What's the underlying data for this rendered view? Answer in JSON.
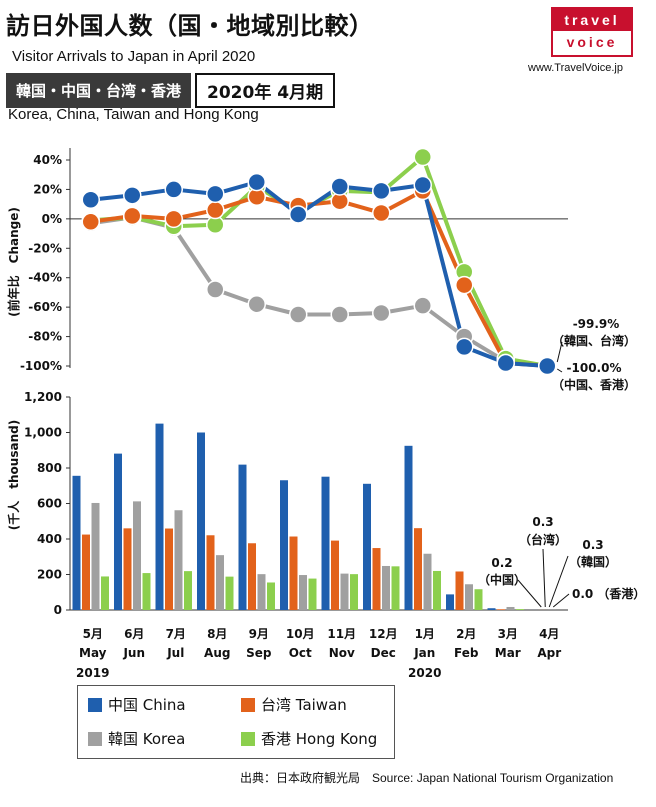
{
  "header": {
    "title": "訪日外国人数（国・地域別比較）",
    "subtitle_en": "Visitor Arrivals to Japan in April 2020",
    "badge_regions": "韓国・中国・台湾・香港",
    "badge_period": "2020年 4月期",
    "regions_en": "Korea, China, Taiwan and Hong Kong"
  },
  "logo": {
    "top": "travel",
    "bottom": "voice",
    "url": "www.TravelVoice.jp"
  },
  "source": "出典：日本政府観光局　Source: Japan  National Tourism  Organization",
  "colors": {
    "china": "#1f5fae",
    "taiwan": "#e2621b",
    "korea": "#a0a0a0",
    "hongkong": "#8ccf4d"
  },
  "legend": [
    {
      "key": "china",
      "label": "中国 China"
    },
    {
      "key": "taiwan",
      "label": "台湾 Taiwan"
    },
    {
      "key": "korea",
      "label": "韓国 Korea"
    },
    {
      "key": "hongkong",
      "label": "香港 Hong Kong"
    }
  ],
  "chart_data": [
    {
      "type": "line",
      "ylabel": "(前年比　Change)",
      "ylim": [
        -100,
        40
      ],
      "yticks": [
        40,
        20,
        0,
        -20,
        -40,
        -60,
        -80,
        -100
      ],
      "ytick_labels": [
        "40%",
        "20%",
        "0%",
        "-20%",
        "-40%",
        "-60%",
        "-80%",
        "-100%"
      ],
      "categories": [
        "5月",
        "6月",
        "7月",
        "8月",
        "9月",
        "10月",
        "11月",
        "12月",
        "1月",
        "2月",
        "3月",
        "4月"
      ],
      "series": [
        {
          "key": "korea",
          "name": "韓国 Korea",
          "values": [
            -3,
            1,
            -6,
            -48,
            -58,
            -65,
            -65,
            -64,
            -59,
            -80,
            -97,
            -99.9
          ]
        },
        {
          "key": "hongkong",
          "name": "香港 Hong Kong",
          "values": [
            -1,
            1,
            -5,
            -4,
            22,
            5,
            19,
            18,
            42,
            -36,
            -95,
            -100
          ]
        },
        {
          "key": "taiwan",
          "name": "台湾 Taiwan",
          "values": [
            -2,
            2,
            0,
            6,
            15,
            9,
            12,
            4,
            19,
            -45,
            -98,
            -99.9
          ]
        },
        {
          "key": "china",
          "name": "中国 China",
          "values": [
            13,
            16,
            20,
            17,
            25,
            3,
            22,
            19,
            23,
            -87,
            -98,
            -100
          ]
        }
      ],
      "annotations": [
        {
          "value": "-99.9%",
          "note": "（韓国、台湾）"
        },
        {
          "value": "-100.0%",
          "note": "（中国、香港）"
        }
      ]
    },
    {
      "type": "bar",
      "ylabel": "(千人　thousand)",
      "ylim": [
        0,
        1200
      ],
      "yticks": [
        0,
        200,
        400,
        600,
        800,
        1000,
        1200
      ],
      "ytick_labels": [
        "0",
        "200",
        "400",
        "600",
        "800",
        "1,000",
        "1,200"
      ],
      "categories": [
        {
          "jp": "5月",
          "en": "May",
          "year": "2019"
        },
        {
          "jp": "6月",
          "en": "Jun",
          "year": ""
        },
        {
          "jp": "7月",
          "en": "Jul",
          "year": ""
        },
        {
          "jp": "8月",
          "en": "Aug",
          "year": ""
        },
        {
          "jp": "9月",
          "en": "Sep",
          "year": ""
        },
        {
          "jp": "10月",
          "en": "Oct",
          "year": ""
        },
        {
          "jp": "11月",
          "en": "Nov",
          "year": ""
        },
        {
          "jp": "12月",
          "en": "Dec",
          "year": ""
        },
        {
          "jp": "1月",
          "en": "Jan",
          "year": "2020"
        },
        {
          "jp": "2月",
          "en": "Feb",
          "year": ""
        },
        {
          "jp": "3月",
          "en": "Mar",
          "year": ""
        },
        {
          "jp": "4月",
          "en": "Apr",
          "year": ""
        }
      ],
      "series": [
        {
          "key": "china",
          "name": "中国 China",
          "values": [
            756,
            881,
            1050,
            1000,
            819,
            731,
            751,
            711,
            925,
            88,
            10,
            0.2
          ]
        },
        {
          "key": "taiwan",
          "name": "台湾 Taiwan",
          "values": [
            425,
            460,
            459,
            421,
            376,
            414,
            391,
            349,
            461,
            217,
            4,
            0.3
          ]
        },
        {
          "key": "korea",
          "name": "韓国 Korea",
          "values": [
            603,
            612,
            562,
            309,
            202,
            197,
            205,
            248,
            317,
            145,
            17,
            0.3
          ]
        },
        {
          "key": "hongkong",
          "name": "香港 Hong Kong",
          "values": [
            189,
            208,
            219,
            188,
            155,
            177,
            202,
            246,
            220,
            117,
            5,
            0.0
          ]
        }
      ],
      "annotations": [
        {
          "value": "0.2",
          "note": "（中国）"
        },
        {
          "value": "0.3",
          "note": "（台湾）"
        },
        {
          "value": "0.3",
          "note": "（韓国）"
        },
        {
          "value": "0.0",
          "note": "（香港）"
        }
      ]
    }
  ]
}
